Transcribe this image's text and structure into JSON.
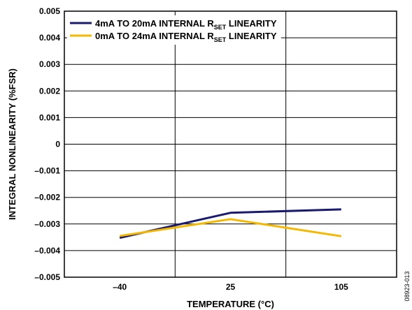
{
  "chart_data": {
    "type": "line",
    "xlabel": "TEMPERATURE (°C)",
    "ylabel": "INTEGRAL NONLINEARITY (%FSR)",
    "categories": [
      "–40",
      "25",
      "105"
    ],
    "y_tick_labels": [
      "–0.005",
      "–0.004",
      "–0.003",
      "–0.002",
      "–0.001",
      "0",
      "0.001",
      "0.002",
      "0.003",
      "0.004",
      "0.005"
    ],
    "ylim": [
      -0.005,
      0.005
    ],
    "y_tick_step": 0.001,
    "grid": true,
    "legend_position": "top-left",
    "series": [
      {
        "name_main": "4mA TO 20mA INTERNAL R",
        "name_sub": "SET",
        "name_tail": " LINEARITY",
        "color": "#1a1a6e",
        "values": [
          -0.00352,
          -0.00258,
          -0.00245
        ]
      },
      {
        "name_main": "0mA TO 24mA INTERNAL R",
        "name_sub": "SET",
        "name_tail": " LINEARITY",
        "color": "#f5b800",
        "values": [
          -0.00345,
          -0.00282,
          -0.00346
        ]
      }
    ]
  },
  "figure_id": "08923-013"
}
